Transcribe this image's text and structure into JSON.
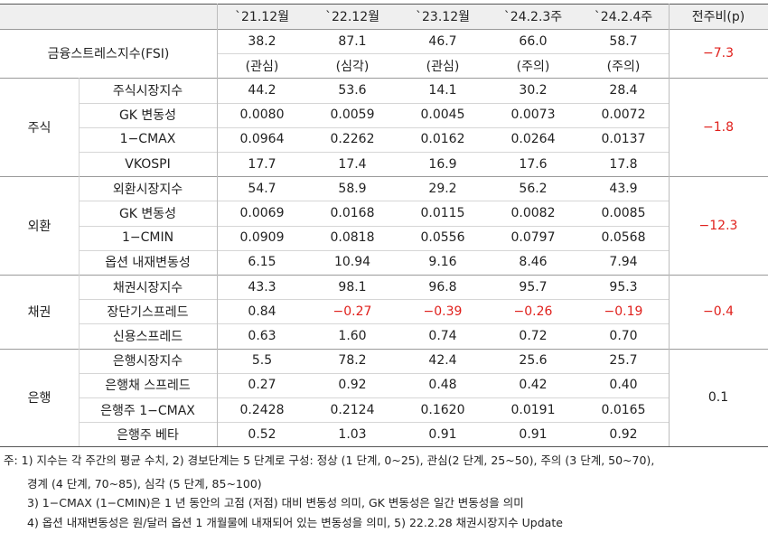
{
  "header": {
    "columns": [
      "`21.12월",
      "`22.12월",
      "`23.12월",
      "`24.2.3주",
      "`24.2.4주",
      "전주비(p)"
    ]
  },
  "table": {
    "groups": [
      {
        "label": "금융스트레스지수(FSI)",
        "change": "−7.3",
        "rows": [
          {
            "values": [
              "38.2",
              "87.1",
              "46.7",
              "66.0",
              "58.7"
            ]
          },
          {
            "values": [
              "(관심)",
              "(심각)",
              "(관심)",
              "(주의)",
              "(주의)"
            ]
          }
        ]
      },
      {
        "label": "주식",
        "change": "−1.8",
        "rows": [
          {
            "label": "주식시장지수",
            "values": [
              "44.2",
              "53.6",
              "14.1",
              "30.2",
              "28.4"
            ]
          },
          {
            "label": "GK 변동성",
            "values": [
              "0.0080",
              "0.0059",
              "0.0045",
              "0.0073",
              "0.0072"
            ]
          },
          {
            "label": "1−CMAX",
            "values": [
              "0.0964",
              "0.2262",
              "0.0162",
              "0.0264",
              "0.0137"
            ]
          },
          {
            "label": "VKOSPI",
            "values": [
              "17.7",
              "17.4",
              "16.9",
              "17.6",
              "17.8"
            ]
          }
        ]
      },
      {
        "label": "외환",
        "change": "−12.3",
        "rows": [
          {
            "label": "외환시장지수",
            "values": [
              "54.7",
              "58.9",
              "29.2",
              "56.2",
              "43.9"
            ]
          },
          {
            "label": "GK 변동성",
            "values": [
              "0.0069",
              "0.0168",
              "0.0115",
              "0.0082",
              "0.0085"
            ]
          },
          {
            "label": "1−CMIN",
            "values": [
              "0.0909",
              "0.0818",
              "0.0556",
              "0.0797",
              "0.0568"
            ]
          },
          {
            "label": "옵션 내재변동성",
            "values": [
              "6.15",
              "10.94",
              "9.16",
              "8.46",
              "7.94"
            ]
          }
        ]
      },
      {
        "label": "채권",
        "change": "−0.4",
        "rows": [
          {
            "label": "채권시장지수",
            "values": [
              "43.3",
              "98.1",
              "96.8",
              "95.7",
              "95.3"
            ]
          },
          {
            "label": "장단기스프레드",
            "values": [
              "0.84",
              "−0.27",
              "−0.39",
              "−0.26",
              "−0.19"
            ]
          },
          {
            "label": "신용스프레드",
            "values": [
              "0.63",
              "1.60",
              "0.74",
              "0.72",
              "0.70"
            ]
          }
        ]
      },
      {
        "label": "은행",
        "change": "0.1",
        "rows": [
          {
            "label": "은행시장지수",
            "values": [
              "5.5",
              "78.2",
              "42.4",
              "25.6",
              "25.7"
            ]
          },
          {
            "label": "은행채 스프레드",
            "values": [
              "0.27",
              "0.92",
              "0.48",
              "0.42",
              "0.40"
            ]
          },
          {
            "label": "은행주 1−CMAX",
            "values": [
              "0.2428",
              "0.2124",
              "0.1620",
              "0.0191",
              "0.0165"
            ]
          },
          {
            "label": "은행주 베타",
            "values": [
              "0.52",
              "1.03",
              "0.91",
              "0.91",
              "0.92"
            ]
          }
        ]
      }
    ]
  },
  "notes": [
    "주: 1) 지수는 각 주간의 평균 수치, 2) 경보단계는 5 단계로 구성: 정상 (1 단계, 0~25), 관심(2 단계, 25~50), 주의 (3 단계, 50~70),",
    "경계 (4 단계, 70~85), 심각 (5 단계, 85~100)",
    "3) 1−CMAX (1−CMIN)은 1 년 동안의 고점 (저점) 대비 변동성 의미, GK 변동성은 일간 변동성을 의미",
    "4) 옵션 내재변동성은 원/달러 옵션 1 개월물에 내재되어 있는 변동성을 의미, 5) 22.2.28 채권시장지수 Update"
  ]
}
